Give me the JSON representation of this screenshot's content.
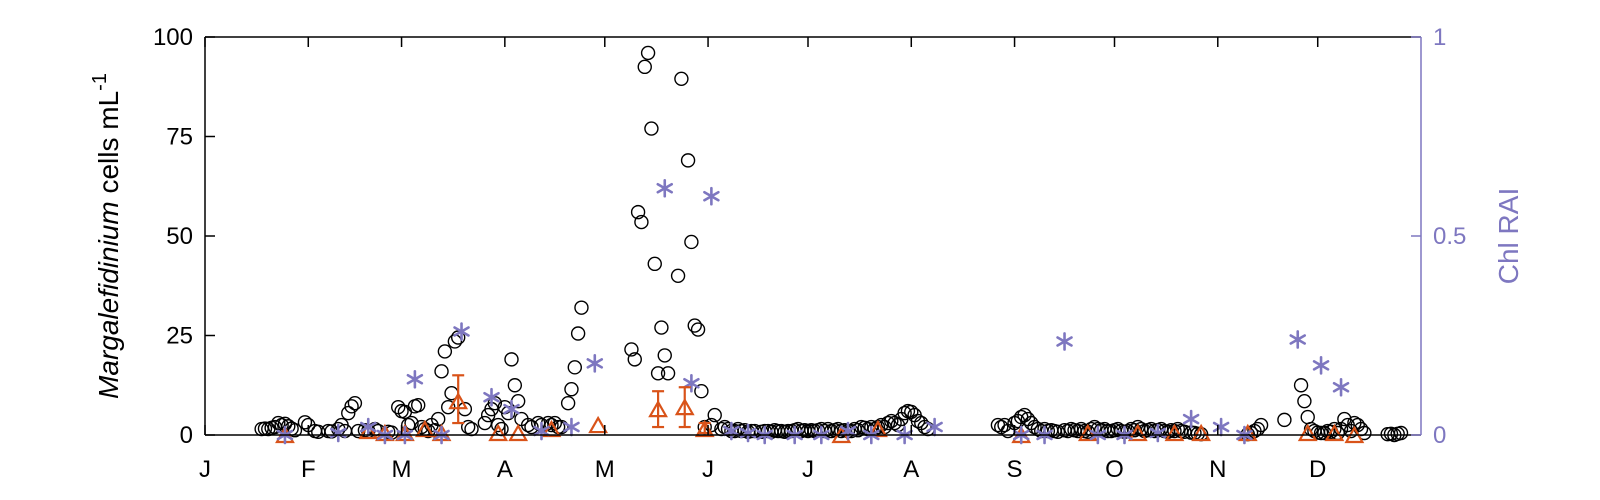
{
  "chart_data": {
    "type": "scatter",
    "ylabel_left_italic": "Margalefidinium",
    "ylabel_left_rest": " cells mL",
    "ylabel_left_sup": "-1",
    "ylabel_right": "Chl RAI",
    "colors": {
      "cells": "#000000",
      "orange": "#D95319",
      "rai": "#7E77C0",
      "axis": "#000000"
    },
    "x_month_labels": [
      "J",
      "F",
      "M",
      "A",
      "M",
      "J",
      "J",
      "A",
      "S",
      "O",
      "N",
      "D"
    ],
    "xlim_days": [
      0,
      365
    ],
    "ylim_left": [
      0,
      100
    ],
    "yticks_left": [
      0,
      25,
      50,
      75,
      100
    ],
    "ylim_right": [
      0,
      1
    ],
    "yticks_right": [
      0,
      0.5,
      1
    ],
    "series": [
      {
        "marker": "circle",
        "axis": "left",
        "points": [
          [
            17,
            1.5
          ],
          [
            18,
            1.6
          ],
          [
            19,
            1.5
          ],
          [
            20,
            1.8
          ],
          [
            21,
            2.0
          ],
          [
            22,
            3.0
          ],
          [
            23,
            2.5
          ],
          [
            24,
            2.8
          ],
          [
            25,
            2.2
          ],
          [
            26,
            1.6
          ],
          [
            27,
            1.2
          ],
          [
            30,
            3.2
          ],
          [
            31,
            2.5
          ],
          [
            33,
            1.0
          ],
          [
            34,
            0.8
          ],
          [
            37,
            1.0
          ],
          [
            38,
            0.9
          ],
          [
            40,
            1.5
          ],
          [
            41,
            2.5
          ],
          [
            42,
            1.0
          ],
          [
            43,
            5.5
          ],
          [
            44,
            7.2
          ],
          [
            45,
            8.0
          ],
          [
            46,
            1.0
          ],
          [
            48,
            1.2
          ],
          [
            49,
            1.0
          ],
          [
            51,
            1.5
          ],
          [
            52,
            1.0
          ],
          [
            55,
            0.8
          ],
          [
            56,
            0.6
          ],
          [
            58,
            7.0
          ],
          [
            59,
            6.0
          ],
          [
            60,
            5.8
          ],
          [
            61,
            2.5
          ],
          [
            62,
            3.0
          ],
          [
            63,
            7.2
          ],
          [
            64,
            7.5
          ],
          [
            65,
            2.0
          ],
          [
            66,
            1.5
          ],
          [
            67,
            1.0
          ],
          [
            68,
            2.5
          ],
          [
            69,
            1.2
          ],
          [
            70,
            4.0
          ],
          [
            71,
            16.0
          ],
          [
            72,
            21.0
          ],
          [
            73,
            7.0
          ],
          [
            74,
            10.5
          ],
          [
            75,
            23.5
          ],
          [
            76,
            24.5
          ],
          [
            78,
            6.5
          ],
          [
            79,
            2.0
          ],
          [
            80,
            1.5
          ],
          [
            84,
            3.0
          ],
          [
            85,
            5.0
          ],
          [
            86,
            6.5
          ],
          [
            87,
            8.0
          ],
          [
            88,
            2.5
          ],
          [
            89,
            1.5
          ],
          [
            90,
            7.0
          ],
          [
            91,
            5.5
          ],
          [
            92,
            19.0
          ],
          [
            93,
            12.5
          ],
          [
            94,
            8.5
          ],
          [
            95,
            4.0
          ],
          [
            97,
            2.5
          ],
          [
            98,
            2.0
          ],
          [
            100,
            3.0
          ],
          [
            101,
            2.5
          ],
          [
            103,
            3.0
          ],
          [
            104,
            2.5
          ],
          [
            105,
            3.0
          ],
          [
            106,
            2.0
          ],
          [
            107,
            2.0
          ],
          [
            109,
            8.0
          ],
          [
            110,
            11.5
          ],
          [
            111,
            17.0
          ],
          [
            112,
            25.5
          ],
          [
            113,
            32.0
          ],
          [
            128,
            21.5
          ],
          [
            129,
            19.0
          ],
          [
            130,
            56.0
          ],
          [
            131,
            53.5
          ],
          [
            132,
            92.5
          ],
          [
            133,
            96.0
          ],
          [
            134,
            77.0
          ],
          [
            135,
            43.0
          ],
          [
            136,
            15.5
          ],
          [
            137,
            27.0
          ],
          [
            138,
            20.0
          ],
          [
            139,
            15.5
          ],
          [
            142,
            40.0
          ],
          [
            143,
            89.5
          ],
          [
            145,
            69.0
          ],
          [
            146,
            48.5
          ],
          [
            147,
            27.5
          ],
          [
            148,
            26.5
          ],
          [
            149,
            11.0
          ],
          [
            150,
            2.0
          ],
          [
            152,
            2.5
          ],
          [
            153,
            5.0
          ],
          [
            155,
            1.5
          ],
          [
            156,
            2.0
          ],
          [
            157,
            1.5
          ],
          [
            158,
            1.0
          ],
          [
            159,
            1.0
          ],
          [
            160,
            1.5
          ],
          [
            161,
            1.0
          ],
          [
            162,
            1.2
          ],
          [
            163,
            0.8
          ],
          [
            164,
            1.0
          ],
          [
            165,
            1.0
          ],
          [
            167,
            0.8
          ],
          [
            168,
            1.0
          ],
          [
            169,
            1.0
          ],
          [
            170,
            0.8
          ],
          [
            171,
            1.2
          ],
          [
            172,
            1.0
          ],
          [
            173,
            1.0
          ],
          [
            174,
            0.8
          ],
          [
            175,
            1.0
          ],
          [
            176,
            1.0
          ],
          [
            177,
            1.2
          ],
          [
            178,
            1.5
          ],
          [
            179,
            1.0
          ],
          [
            180,
            1.2
          ],
          [
            181,
            1.0
          ],
          [
            182,
            1.2
          ],
          [
            183,
            1.0
          ],
          [
            184,
            1.2
          ],
          [
            185,
            1.5
          ],
          [
            186,
            1.0
          ],
          [
            187,
            1.5
          ],
          [
            188,
            1.0
          ],
          [
            189,
            1.2
          ],
          [
            190,
            1.5
          ],
          [
            191,
            1.0
          ],
          [
            192,
            1.2
          ],
          [
            193,
            1.0
          ],
          [
            194,
            1.0
          ],
          [
            195,
            1.5
          ],
          [
            196,
            1.2
          ],
          [
            197,
            2.0
          ],
          [
            198,
            1.8
          ],
          [
            199,
            1.5
          ],
          [
            200,
            2.0
          ],
          [
            201,
            1.5
          ],
          [
            202,
            2.0
          ],
          [
            203,
            2.5
          ],
          [
            204,
            2.0
          ],
          [
            205,
            3.0
          ],
          [
            206,
            3.5
          ],
          [
            207,
            3.0
          ],
          [
            208,
            2.5
          ],
          [
            209,
            4.0
          ],
          [
            210,
            5.5
          ],
          [
            211,
            6.0
          ],
          [
            212,
            5.8
          ],
          [
            213,
            5.0
          ],
          [
            214,
            3.5
          ],
          [
            215,
            3.0
          ],
          [
            216,
            2.0
          ],
          [
            217,
            1.5
          ],
          [
            238,
            2.5
          ],
          [
            239,
            2.0
          ],
          [
            240,
            2.5
          ],
          [
            241,
            1.0
          ],
          [
            243,
            3.0
          ],
          [
            244,
            3.5
          ],
          [
            245,
            4.5
          ],
          [
            246,
            5.0
          ],
          [
            247,
            4.0
          ],
          [
            248,
            3.0
          ],
          [
            249,
            2.0
          ],
          [
            250,
            1.5
          ],
          [
            251,
            1.0
          ],
          [
            252,
            1.5
          ],
          [
            253,
            1.0
          ],
          [
            254,
            1.2
          ],
          [
            255,
            1.0
          ],
          [
            256,
            0.8
          ],
          [
            258,
            1.2
          ],
          [
            259,
            1.0
          ],
          [
            260,
            1.5
          ],
          [
            261,
            1.2
          ],
          [
            262,
            1.0
          ],
          [
            263,
            1.5
          ],
          [
            264,
            1.0
          ],
          [
            265,
            0.8
          ],
          [
            266,
            1.5
          ],
          [
            267,
            2.0
          ],
          [
            268,
            1.5
          ],
          [
            269,
            1.2
          ],
          [
            270,
            1.5
          ],
          [
            271,
            1.0
          ],
          [
            272,
            1.0
          ],
          [
            273,
            1.2
          ],
          [
            274,
            1.5
          ],
          [
            275,
            1.0
          ],
          [
            276,
            0.8
          ],
          [
            277,
            1.0
          ],
          [
            278,
            1.5
          ],
          [
            279,
            1.2
          ],
          [
            280,
            2.0
          ],
          [
            281,
            1.5
          ],
          [
            282,
            1.0
          ],
          [
            283,
            1.2
          ],
          [
            284,
            1.5
          ],
          [
            285,
            1.0
          ],
          [
            286,
            1.2
          ],
          [
            287,
            1.5
          ],
          [
            288,
            1.0
          ],
          [
            289,
            0.8
          ],
          [
            290,
            1.2
          ],
          [
            291,
            1.0
          ],
          [
            292,
            1.5
          ],
          [
            293,
            1.0
          ],
          [
            294,
            0.8
          ],
          [
            296,
            0.6
          ],
          [
            297,
            0.5
          ],
          [
            298,
            0.3
          ],
          [
            299,
            0.2
          ],
          [
            313,
            0.2
          ],
          [
            314,
            0.5
          ],
          [
            315,
            1.0
          ],
          [
            316,
            1.5
          ],
          [
            317,
            2.5
          ],
          [
            324,
            3.8
          ],
          [
            329,
            12.5
          ],
          [
            330,
            8.5
          ],
          [
            331,
            4.5
          ],
          [
            332,
            1.5
          ],
          [
            333,
            1.0
          ],
          [
            334,
            0.6
          ],
          [
            335,
            0.5
          ],
          [
            336,
            0.5
          ],
          [
            337,
            1.0
          ],
          [
            338,
            0.8
          ],
          [
            339,
            1.5
          ],
          [
            340,
            0.5
          ],
          [
            341,
            1.5
          ],
          [
            342,
            4.0
          ],
          [
            343,
            2.5
          ],
          [
            344,
            1.0
          ],
          [
            345,
            3.0
          ],
          [
            346,
            2.5
          ],
          [
            347,
            1.5
          ],
          [
            348,
            0.5
          ],
          [
            355,
            0.2
          ],
          [
            356,
            0.3
          ],
          [
            357,
            0.0
          ],
          [
            358,
            0.3
          ],
          [
            359,
            0.5
          ]
        ]
      },
      {
        "marker": "triangle",
        "axis": "left",
        "points": [
          [
            24,
            0.0
          ],
          [
            49,
            1.0
          ],
          [
            54,
            0.5
          ],
          [
            60,
            0.5
          ],
          [
            66,
            1.5
          ],
          [
            71,
            0.5
          ],
          [
            76,
            8.5
          ],
          [
            88,
            0.5
          ],
          [
            94,
            0.5
          ],
          [
            104,
            1.5
          ],
          [
            118,
            2.5
          ],
          [
            136,
            6.5
          ],
          [
            144,
            7.0
          ],
          [
            150,
            1.5
          ],
          [
            191,
            0.0
          ],
          [
            202,
            1.5
          ],
          [
            245,
            0.0
          ],
          [
            265,
            0.5
          ],
          [
            280,
            0.5
          ],
          [
            291,
            0.5
          ],
          [
            299,
            0.5
          ],
          [
            313,
            0.5
          ],
          [
            331,
            0.5
          ],
          [
            339,
            0.5
          ],
          [
            345,
            0.0
          ]
        ]
      },
      {
        "marker": "asterisk",
        "axis": "right",
        "points": [
          [
            24,
            0.0
          ],
          [
            40,
            0.005
          ],
          [
            49,
            0.02
          ],
          [
            54,
            0.0
          ],
          [
            60,
            0.0
          ],
          [
            63,
            0.14
          ],
          [
            71,
            0.0
          ],
          [
            77,
            0.26
          ],
          [
            86,
            0.095
          ],
          [
            92,
            0.065
          ],
          [
            101,
            0.01
          ],
          [
            110,
            0.02
          ],
          [
            117,
            0.18
          ],
          [
            138,
            0.62
          ],
          [
            146,
            0.13
          ],
          [
            152,
            0.6
          ],
          [
            158,
            0.01
          ],
          [
            163,
            0.005
          ],
          [
            168,
            0.0
          ],
          [
            177,
            0.0
          ],
          [
            185,
            0.0
          ],
          [
            193,
            0.01
          ],
          [
            200,
            0.0
          ],
          [
            210,
            0.0
          ],
          [
            219,
            0.02
          ],
          [
            245,
            0.0
          ],
          [
            252,
            0.0
          ],
          [
            258,
            0.235
          ],
          [
            268,
            0.0
          ],
          [
            276,
            0.0
          ],
          [
            286,
            0.005
          ],
          [
            296,
            0.04
          ],
          [
            305,
            0.02
          ],
          [
            312,
            0.0
          ],
          [
            328,
            0.24
          ],
          [
            335,
            0.175
          ],
          [
            341,
            0.12
          ]
        ]
      }
    ],
    "error_bars": [
      {
        "x": 76,
        "lo": 3.0,
        "hi": 15.0
      },
      {
        "x": 136,
        "lo": 2.0,
        "hi": 11.0
      },
      {
        "x": 144,
        "lo": 2.0,
        "hi": 12.0
      },
      {
        "x": 150,
        "lo": 0.5,
        "hi": 3.0
      }
    ]
  }
}
